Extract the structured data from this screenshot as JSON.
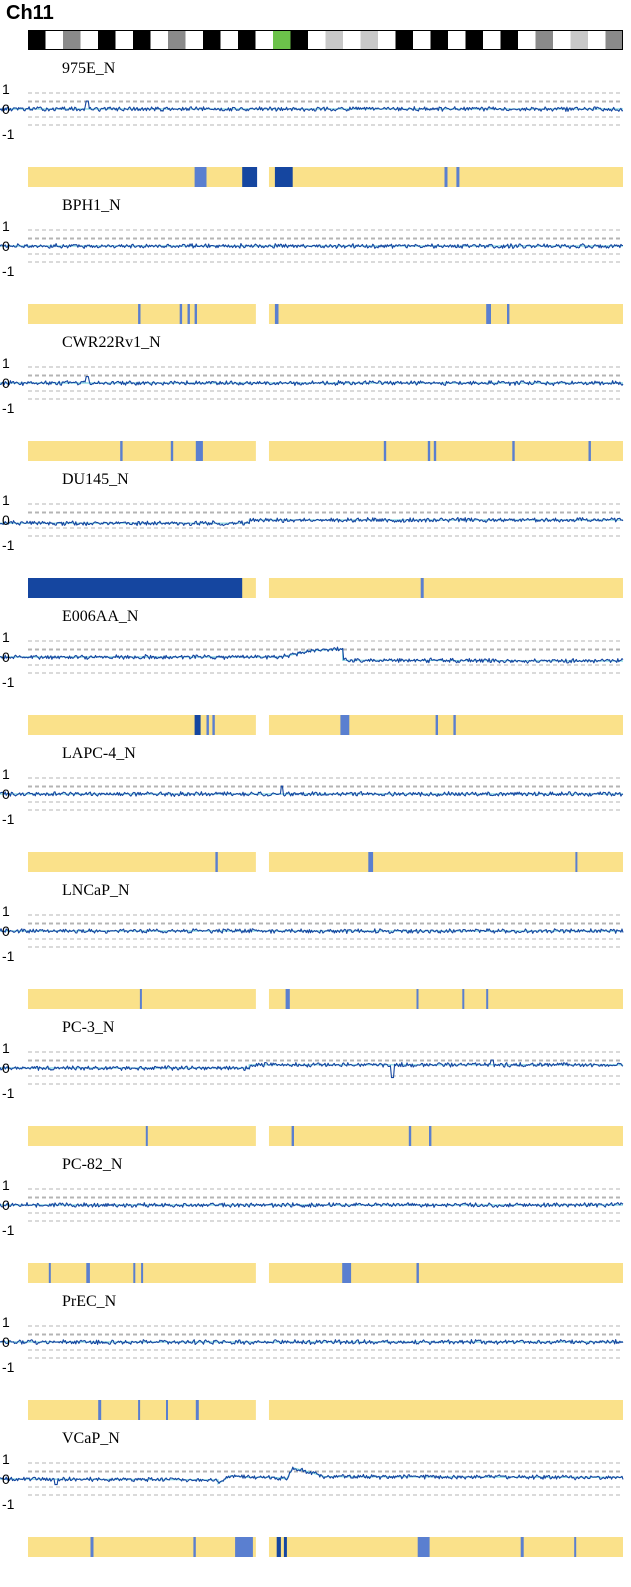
{
  "chromosome": "Ch11",
  "colors": {
    "trace": "#1546a0",
    "baseline": "#7fd6e0",
    "segment_bg": "#fae18a",
    "segment_dark": "#1546a0",
    "segment_light": "#5a7fd0",
    "grid": "#b4b4b4"
  },
  "chart_data": {
    "type": "line",
    "chromosome": "Ch11",
    "ylim": [
      -1,
      1
    ],
    "yticks": [
      "1",
      "0",
      "-1"
    ],
    "ideogram": {
      "bands": [
        "black",
        "white",
        "gray",
        "white",
        "black",
        "white",
        "black",
        "white",
        "gray",
        "white",
        "black",
        "white",
        "black",
        "white",
        "green",
        "black",
        "white",
        "lightgray",
        "white",
        "lightgray",
        "white",
        "black",
        "white",
        "black",
        "white",
        "black",
        "white",
        "black",
        "white",
        "gray",
        "white",
        "lightgray",
        "white",
        "gray"
      ]
    },
    "series": [
      {
        "name": "975E_N",
        "level_profile": [
          [
            0.0,
            0.0
          ],
          [
            1.0,
            0.0
          ]
        ],
        "spikes": [
          [
            0.14,
            0.5
          ]
        ],
        "segments": [
          {
            "x": 0.28,
            "w": 0.02,
            "shade": "light"
          },
          {
            "x": 0.36,
            "w": 0.025,
            "shade": "dark"
          },
          {
            "x": 0.415,
            "w": 0.03,
            "shade": "dark"
          },
          {
            "x": 0.7,
            "w": 0.005,
            "shade": "light"
          },
          {
            "x": 0.72,
            "w": 0.005,
            "shade": "light"
          }
        ]
      },
      {
        "name": "BPH1_N",
        "level_profile": [
          [
            0.0,
            0.0
          ],
          [
            1.0,
            0.0
          ]
        ],
        "spikes": [],
        "segments": [
          {
            "x": 0.185,
            "w": 0.004,
            "shade": "light"
          },
          {
            "x": 0.255,
            "w": 0.004,
            "shade": "light"
          },
          {
            "x": 0.268,
            "w": 0.004,
            "shade": "light"
          },
          {
            "x": 0.28,
            "w": 0.004,
            "shade": "light"
          },
          {
            "x": 0.415,
            "w": 0.006,
            "shade": "light"
          },
          {
            "x": 0.77,
            "w": 0.008,
            "shade": "light"
          },
          {
            "x": 0.805,
            "w": 0.004,
            "shade": "light"
          }
        ]
      },
      {
        "name": "CWR22Rv1_N",
        "level_profile": [
          [
            0.0,
            0.0
          ],
          [
            1.0,
            0.0
          ]
        ],
        "spikes": [
          [
            0.14,
            0.4
          ]
        ],
        "segments": [
          {
            "x": 0.155,
            "w": 0.004,
            "shade": "light"
          },
          {
            "x": 0.24,
            "w": 0.004,
            "shade": "light"
          },
          {
            "x": 0.282,
            "w": 0.012,
            "shade": "light"
          },
          {
            "x": 0.598,
            "w": 0.004,
            "shade": "light"
          },
          {
            "x": 0.672,
            "w": 0.004,
            "shade": "light"
          },
          {
            "x": 0.682,
            "w": 0.004,
            "shade": "light"
          },
          {
            "x": 0.814,
            "w": 0.004,
            "shade": "light"
          },
          {
            "x": 0.942,
            "w": 0.004,
            "shade": "light"
          }
        ]
      },
      {
        "name": "DU145_N",
        "level_profile": [
          [
            0.0,
            -0.2
          ],
          [
            0.4,
            -0.2
          ],
          [
            0.4,
            0.0
          ],
          [
            1.0,
            0.0
          ]
        ],
        "spikes": [],
        "segments": [
          {
            "x": 0.0,
            "w": 0.36,
            "shade": "dark"
          },
          {
            "x": 0.66,
            "w": 0.005,
            "shade": "light"
          }
        ]
      },
      {
        "name": "E006AA_N",
        "level_profile": [
          [
            0.0,
            0.0
          ],
          [
            0.45,
            0.0
          ],
          [
            0.47,
            0.15
          ],
          [
            0.5,
            0.4
          ],
          [
            0.55,
            0.5
          ],
          [
            0.55,
            -0.2
          ],
          [
            1.0,
            -0.25
          ]
        ],
        "spikes": [],
        "segments": [
          {
            "x": 0.28,
            "w": 0.01,
            "shade": "dark"
          },
          {
            "x": 0.3,
            "w": 0.004,
            "shade": "light"
          },
          {
            "x": 0.31,
            "w": 0.004,
            "shade": "light"
          },
          {
            "x": 0.525,
            "w": 0.015,
            "shade": "light"
          },
          {
            "x": 0.685,
            "w": 0.004,
            "shade": "light"
          },
          {
            "x": 0.715,
            "w": 0.004,
            "shade": "light"
          }
        ]
      },
      {
        "name": "LAPC-4_N",
        "level_profile": [
          [
            0.0,
            0.0
          ],
          [
            1.0,
            0.0
          ]
        ],
        "spikes": [
          [
            0.452,
            0.5
          ]
        ],
        "segments": [
          {
            "x": 0.315,
            "w": 0.004,
            "shade": "light"
          },
          {
            "x": 0.572,
            "w": 0.008,
            "shade": "light"
          },
          {
            "x": 0.92,
            "w": 0.003,
            "shade": "light"
          }
        ]
      },
      {
        "name": "LNCaP_N",
        "level_profile": [
          [
            0.0,
            0.0
          ],
          [
            1.0,
            0.0
          ]
        ],
        "spikes": [],
        "segments": [
          {
            "x": 0.188,
            "w": 0.003,
            "shade": "light"
          },
          {
            "x": 0.433,
            "w": 0.007,
            "shade": "light"
          },
          {
            "x": 0.653,
            "w": 0.003,
            "shade": "light"
          },
          {
            "x": 0.73,
            "w": 0.003,
            "shade": "light"
          },
          {
            "x": 0.77,
            "w": 0.003,
            "shade": "light"
          }
        ]
      },
      {
        "name": "PC-3_N",
        "level_profile": [
          [
            0.0,
            0.0
          ],
          [
            0.4,
            0.0
          ],
          [
            0.4,
            0.2
          ],
          [
            1.0,
            0.2
          ]
        ],
        "spikes": [
          [
            0.63,
            -0.6
          ],
          [
            0.79,
            0.5
          ]
        ],
        "segments": [
          {
            "x": 0.198,
            "w": 0.003,
            "shade": "light"
          },
          {
            "x": 0.443,
            "w": 0.004,
            "shade": "light"
          },
          {
            "x": 0.64,
            "w": 0.004,
            "shade": "light"
          },
          {
            "x": 0.674,
            "w": 0.004,
            "shade": "light"
          }
        ]
      },
      {
        "name": "PC-82_N",
        "level_profile": [
          [
            0.0,
            0.0
          ],
          [
            1.0,
            0.0
          ]
        ],
        "spikes": [],
        "segments": [
          {
            "x": 0.035,
            "w": 0.003,
            "shade": "light"
          },
          {
            "x": 0.098,
            "w": 0.006,
            "shade": "light"
          },
          {
            "x": 0.177,
            "w": 0.003,
            "shade": "light"
          },
          {
            "x": 0.19,
            "w": 0.003,
            "shade": "light"
          },
          {
            "x": 0.528,
            "w": 0.015,
            "shade": "light"
          },
          {
            "x": 0.653,
            "w": 0.004,
            "shade": "light"
          }
        ]
      },
      {
        "name": "PrEC_N",
        "level_profile": [
          [
            0.0,
            0.0
          ],
          [
            1.0,
            0.0
          ]
        ],
        "spikes": [],
        "segments": [
          {
            "x": 0.118,
            "w": 0.005,
            "shade": "light"
          },
          {
            "x": 0.185,
            "w": 0.003,
            "shade": "light"
          },
          {
            "x": 0.232,
            "w": 0.003,
            "shade": "light"
          },
          {
            "x": 0.282,
            "w": 0.005,
            "shade": "light"
          }
        ]
      },
      {
        "name": "VCaP_N",
        "level_profile": [
          [
            0.0,
            0.0
          ],
          [
            0.35,
            -0.05
          ],
          [
            0.35,
            -0.3
          ],
          [
            0.37,
            0.2
          ],
          [
            0.4,
            0.1
          ],
          [
            0.44,
            0.1
          ],
          [
            0.46,
            0.0
          ],
          [
            0.47,
            0.7
          ],
          [
            0.5,
            0.4
          ],
          [
            0.52,
            0.15
          ],
          [
            1.0,
            0.1
          ]
        ],
        "spikes": [
          [
            0.09,
            -0.35
          ]
        ],
        "segments": [
          {
            "x": 0.105,
            "w": 0.005,
            "shade": "light"
          },
          {
            "x": 0.278,
            "w": 0.004,
            "shade": "light"
          },
          {
            "x": 0.348,
            "w": 0.03,
            "shade": "light"
          },
          {
            "x": 0.418,
            "w": 0.007,
            "shade": "dark"
          },
          {
            "x": 0.43,
            "w": 0.005,
            "shade": "dark"
          },
          {
            "x": 0.655,
            "w": 0.02,
            "shade": "light"
          },
          {
            "x": 0.828,
            "w": 0.005,
            "shade": "light"
          },
          {
            "x": 0.918,
            "w": 0.003,
            "shade": "light"
          }
        ]
      }
    ]
  }
}
